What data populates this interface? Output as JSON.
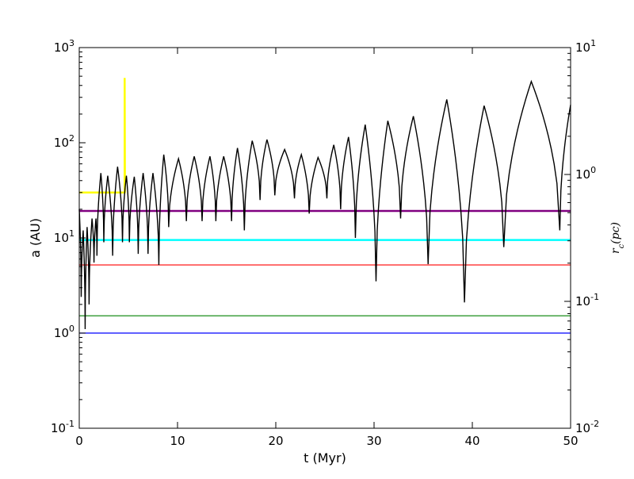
{
  "chart_data": {
    "type": "line",
    "title": "",
    "xlabel": "t (Myr)",
    "ylabel": "a (AU)",
    "y2label": "r_c(pc)",
    "y2label_display": {
      "base": "r",
      "sub": "c",
      "rest": "(pc)"
    },
    "xlim": [
      0,
      50
    ],
    "ylim": [
      0.1,
      1000
    ],
    "yscale": "log",
    "y2lim": [
      0.01,
      10
    ],
    "y2scale": "log",
    "grid": false,
    "legend": "none",
    "x_ticks": [
      {
        "value": 0,
        "label": "0"
      },
      {
        "value": 10,
        "label": "10"
      },
      {
        "value": 20,
        "label": "20"
      },
      {
        "value": 30,
        "label": "30"
      },
      {
        "value": 40,
        "label": "40"
      },
      {
        "value": 50,
        "label": "50"
      }
    ],
    "y_ticks": [
      {
        "value": 0.1,
        "base": "10",
        "exp": "-1"
      },
      {
        "value": 1,
        "base": "10",
        "exp": "0"
      },
      {
        "value": 10,
        "base": "10",
        "exp": "1"
      },
      {
        "value": 100,
        "base": "10",
        "exp": "2"
      },
      {
        "value": 1000,
        "base": "10",
        "exp": "3"
      }
    ],
    "y2_ticks": [
      {
        "value": 0.01,
        "base": "10",
        "exp": "-2"
      },
      {
        "value": 0.1,
        "base": "10",
        "exp": "-1"
      },
      {
        "value": 1,
        "base": "10",
        "exp": "0"
      },
      {
        "value": 10,
        "base": "10",
        "exp": "1"
      }
    ],
    "series": [
      {
        "color": "#0000ff",
        "x": [
          0,
          50
        ],
        "y": [
          1.0,
          1.0
        ]
      },
      {
        "color": "#008000",
        "x": [
          0,
          50
        ],
        "y": [
          1.52,
          1.52
        ]
      },
      {
        "color": "#ff0000",
        "x": [
          0,
          50
        ],
        "y": [
          5.2,
          5.2
        ]
      },
      {
        "color": "#00ffff",
        "x": [
          0,
          50
        ],
        "y": [
          9.5,
          9.5
        ]
      },
      {
        "color": "#800080",
        "x": [
          0,
          50
        ],
        "y": [
          19.2,
          19.2
        ]
      },
      {
        "color": "#ffff00",
        "x": [
          0,
          4.6,
          4.62,
          4.62,
          4.65
        ],
        "y": [
          30,
          30,
          30,
          480,
          30
        ]
      }
    ],
    "orbit_series": {
      "color": "#000000",
      "segments": [
        [
          0.0,
          20,
          0.2,
          2.4
        ],
        [
          0.2,
          2.4,
          0.4,
          12
        ],
        [
          0.4,
          12,
          0.6,
          1.1
        ],
        [
          0.6,
          1.1,
          0.8,
          13
        ],
        [
          0.8,
          13,
          1.0,
          2.0
        ],
        [
          1.0,
          2.0,
          1.3,
          16
        ],
        [
          1.3,
          16,
          1.5,
          5.5
        ],
        [
          1.5,
          5.5,
          1.7,
          16
        ],
        [
          1.7,
          16,
          1.8,
          6.5
        ],
        [
          1.8,
          6.5,
          2.2,
          48
        ],
        [
          2.2,
          48,
          2.5,
          9
        ],
        [
          2.5,
          9,
          2.9,
          45
        ],
        [
          2.9,
          45,
          3.4,
          6.5
        ],
        [
          3.4,
          6.5,
          3.9,
          56
        ],
        [
          3.9,
          56,
          4.4,
          9
        ],
        [
          4.4,
          9,
          4.8,
          45
        ],
        [
          4.8,
          45,
          5.1,
          9
        ],
        [
          5.1,
          9,
          5.6,
          44
        ],
        [
          5.6,
          44,
          6.0,
          6.8
        ],
        [
          6.0,
          6.8,
          6.5,
          48
        ],
        [
          6.5,
          48,
          7.0,
          6.8
        ],
        [
          7.0,
          6.8,
          7.5,
          48
        ],
        [
          7.5,
          48,
          8.1,
          5.2
        ],
        [
          8.1,
          5.2,
          8.6,
          75
        ],
        [
          8.6,
          75,
          9.1,
          13
        ],
        [
          9.1,
          13,
          10.1,
          68
        ],
        [
          10.1,
          68,
          10.9,
          15
        ],
        [
          10.9,
          15,
          11.7,
          72
        ],
        [
          11.7,
          72,
          12.5,
          15
        ],
        [
          12.5,
          15,
          13.3,
          72
        ],
        [
          13.3,
          72,
          13.9,
          15
        ],
        [
          13.9,
          15,
          14.7,
          72
        ],
        [
          14.7,
          72,
          15.5,
          15
        ],
        [
          15.5,
          15,
          16.1,
          88
        ],
        [
          16.1,
          88,
          16.8,
          12
        ],
        [
          16.8,
          12,
          17.6,
          105
        ],
        [
          17.6,
          105,
          18.4,
          25
        ],
        [
          18.4,
          25,
          19.1,
          108
        ],
        [
          19.1,
          108,
          19.9,
          28
        ],
        [
          19.9,
          28,
          20.9,
          85
        ],
        [
          20.9,
          85,
          21.9,
          26
        ],
        [
          21.9,
          26,
          22.6,
          75
        ],
        [
          22.6,
          75,
          23.4,
          18
        ],
        [
          23.4,
          18,
          24.3,
          70
        ],
        [
          24.3,
          70,
          25.2,
          26
        ],
        [
          25.2,
          26,
          25.9,
          95
        ],
        [
          25.9,
          95,
          26.6,
          20
        ],
        [
          26.6,
          20,
          27.4,
          115
        ],
        [
          27.4,
          115,
          28.1,
          10
        ],
        [
          28.1,
          10,
          29.1,
          155
        ],
        [
          29.1,
          155,
          30.2,
          3.5
        ],
        [
          30.2,
          3.5,
          31.4,
          170
        ],
        [
          31.4,
          170,
          32.7,
          16
        ],
        [
          32.7,
          16,
          34.0,
          190
        ],
        [
          34.0,
          190,
          35.5,
          5.3
        ],
        [
          35.5,
          5.3,
          37.4,
          285
        ],
        [
          37.4,
          285,
          39.2,
          2.1
        ],
        [
          39.2,
          2.1,
          41.2,
          245
        ],
        [
          41.2,
          245,
          43.2,
          8
        ],
        [
          43.2,
          8,
          46.0,
          440
        ],
        [
          46.0,
          440,
          48.9,
          12
        ],
        [
          48.9,
          12,
          50.0,
          250
        ]
      ]
    }
  }
}
